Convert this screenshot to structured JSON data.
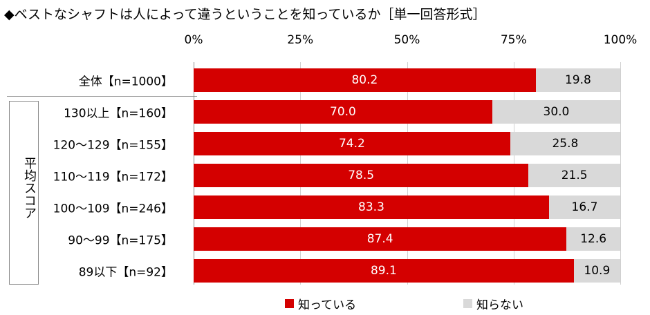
{
  "title": "◆ベストなシャフトは人によって違うということを知っているか［単一回答形式］",
  "chart_data": {
    "type": "bar",
    "stacked": true,
    "orientation": "horizontal",
    "title": "◆ベストなシャフトは人によって違うということを知っているか［単一回答形式］",
    "xlim": [
      0,
      100
    ],
    "x_ticks": [
      "0%",
      "25%",
      "50%",
      "75%",
      "100%"
    ],
    "group_label": "平均スコア",
    "categories": [
      "全体【n=1000】",
      "130以上【n=160】",
      "120～129【n=155】",
      "110～119【n=172】",
      "100～109【n=246】",
      "90～99【n=175】",
      "89以下【n=92】"
    ],
    "series": [
      {
        "name": "知っている",
        "color": "#d40000",
        "values": [
          80.2,
          70.0,
          74.2,
          78.5,
          83.3,
          87.4,
          89.1
        ],
        "labels": [
          "80.2",
          "70.0",
          "74.2",
          "78.5",
          "83.3",
          "87.4",
          "89.1"
        ]
      },
      {
        "name": "知らない",
        "color": "#d9d9d9",
        "values": [
          19.8,
          30.0,
          25.8,
          21.5,
          16.7,
          12.6,
          10.9
        ],
        "labels": [
          "19.8",
          "30.0",
          "25.8",
          "21.5",
          "16.7",
          "12.6",
          "10.9"
        ]
      }
    ],
    "legend_position": "bottom"
  }
}
